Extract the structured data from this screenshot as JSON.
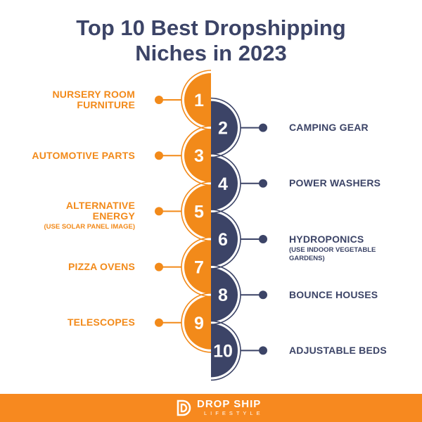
{
  "title": {
    "line1": "Top 10 Best Dropshipping",
    "line2": "Niches in 2023"
  },
  "colors": {
    "orange": "#f28a1a",
    "navy": "#3c4467",
    "footer": "#f7891f"
  },
  "niches": [
    {
      "number": "1",
      "side": "left",
      "label": "NURSERY ROOM FURNITURE",
      "note": ""
    },
    {
      "number": "2",
      "side": "right",
      "label": "CAMPING GEAR",
      "note": ""
    },
    {
      "number": "3",
      "side": "left",
      "label": "AUTOMOTIVE PARTS",
      "note": ""
    },
    {
      "number": "4",
      "side": "right",
      "label": "POWER WASHERS",
      "note": ""
    },
    {
      "number": "5",
      "side": "left",
      "label": "ALTERNATIVE ENERGY",
      "note": "(USE SOLAR PANEL IMAGE)"
    },
    {
      "number": "6",
      "side": "right",
      "label": "HYDROPONICS",
      "note": "(USE INDOOR VEGETABLE GARDENS)"
    },
    {
      "number": "7",
      "side": "left",
      "label": "PIZZA OVENS",
      "note": ""
    },
    {
      "number": "8",
      "side": "right",
      "label": "BOUNCE HOUSES",
      "note": ""
    },
    {
      "number": "9",
      "side": "left",
      "label": "TELESCOPES",
      "note": ""
    },
    {
      "number": "10",
      "side": "right",
      "label": "ADJUSTABLE BEDS",
      "note": ""
    }
  ],
  "footer": {
    "logo_line1": "DROP SHIP",
    "logo_line2": "LIFESTYLE"
  }
}
